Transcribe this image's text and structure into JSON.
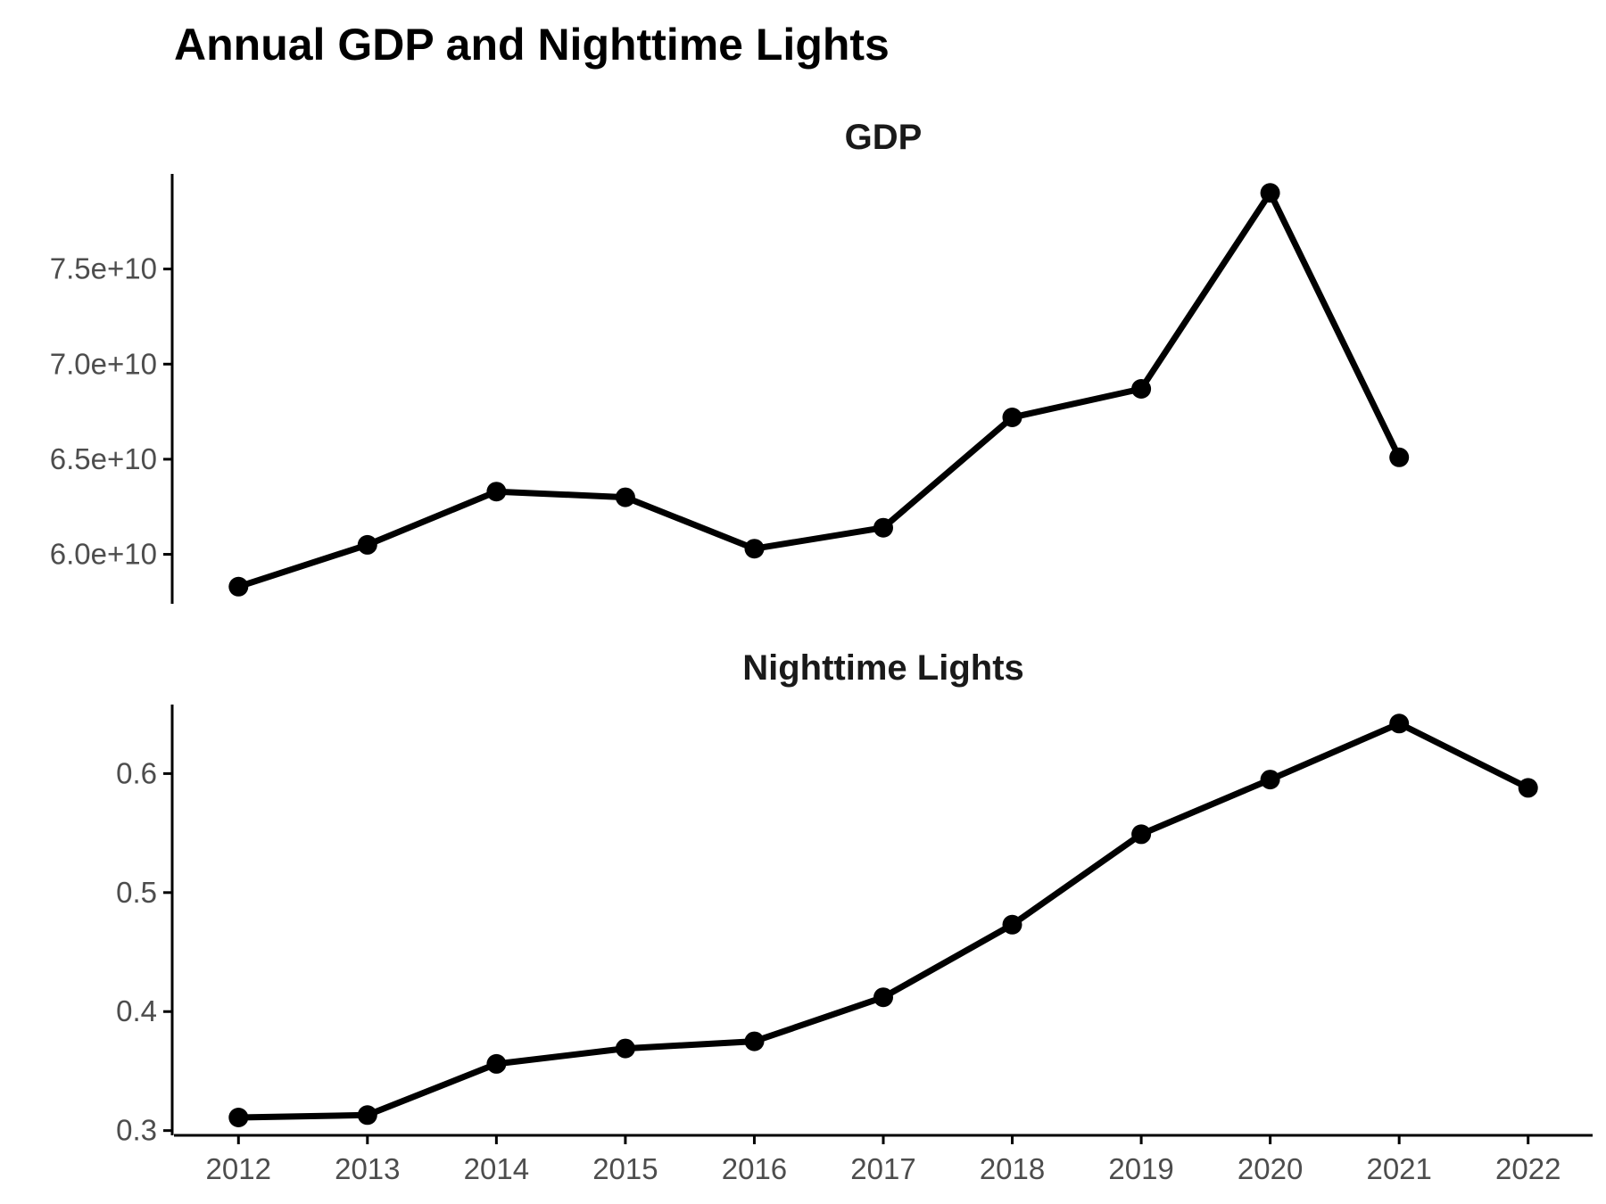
{
  "chart_data": {
    "type": "line",
    "title": "Annual GDP and Nighttime Lights",
    "x": [
      2012,
      2013,
      2014,
      2015,
      2016,
      2017,
      2018,
      2019,
      2020,
      2021,
      2022
    ],
    "x_tick_labels": [
      "2012",
      "2013",
      "2014",
      "2015",
      "2016",
      "2017",
      "2018",
      "2019",
      "2020",
      "2021",
      "2022"
    ],
    "xlim": [
      2011.5,
      2022.5
    ],
    "grid": false,
    "legend": "none",
    "panels": [
      {
        "title": "GDP",
        "ylim": [
          57400000000,
          80000000000
        ],
        "y_ticks": [
          60000000000,
          65000000000,
          70000000000,
          75000000000
        ],
        "y_tick_labels": [
          "6.0e+10",
          "6.5e+10",
          "7.0e+10",
          "7.5e+10"
        ],
        "x": [
          2012,
          2013,
          2014,
          2015,
          2016,
          2017,
          2018,
          2019,
          2020,
          2021
        ],
        "values": [
          58300000000,
          60500000000,
          63300000000,
          63000000000,
          60300000000,
          61400000000,
          67200000000,
          68700000000,
          79000000000,
          65100000000
        ]
      },
      {
        "title": "Nighttime Lights",
        "ylim": [
          0.296,
          0.658
        ],
        "y_ticks": [
          0.3,
          0.4,
          0.5,
          0.6
        ],
        "y_tick_labels": [
          "0.3",
          "0.4",
          "0.5",
          "0.6"
        ],
        "x": [
          2012,
          2013,
          2014,
          2015,
          2016,
          2017,
          2018,
          2019,
          2020,
          2021,
          2022
        ],
        "values": [
          0.311,
          0.313,
          0.356,
          0.369,
          0.375,
          0.412,
          0.473,
          0.549,
          0.595,
          0.642,
          0.588
        ]
      }
    ]
  }
}
